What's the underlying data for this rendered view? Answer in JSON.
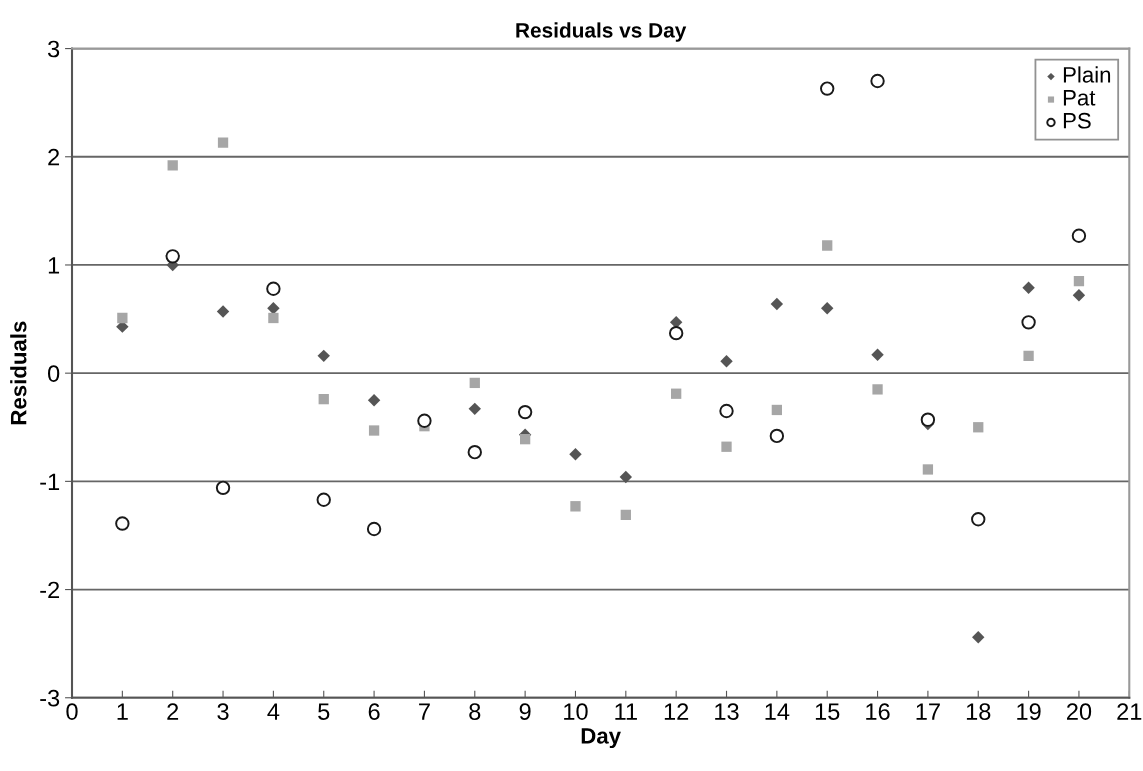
{
  "chart_data": {
    "type": "scatter",
    "title": "Residuals vs Day",
    "xlabel": "Day",
    "ylabel": "Residuals",
    "xlim": [
      0,
      21
    ],
    "xticks": [
      0,
      1,
      2,
      3,
      4,
      5,
      6,
      7,
      8,
      9,
      10,
      11,
      12,
      13,
      14,
      15,
      16,
      17,
      18,
      19,
      20,
      21
    ],
    "ylim": [
      -3,
      3
    ],
    "yticks": [
      -3,
      -2,
      -1,
      0,
      1,
      2,
      3
    ],
    "grid": "y",
    "legend": "top right",
    "x": [
      1,
      2,
      3,
      4,
      5,
      6,
      7,
      8,
      9,
      10,
      11,
      12,
      13,
      14,
      15,
      16,
      17,
      18,
      19,
      20
    ],
    "series": [
      {
        "name": "Plain",
        "color": "#555555",
        "marker": "diamond",
        "values": [
          0.43,
          1.0,
          0.57,
          0.6,
          0.16,
          -0.25,
          null,
          -0.33,
          -0.57,
          -0.75,
          -0.96,
          0.47,
          0.11,
          0.64,
          0.6,
          0.17,
          -0.47,
          -2.44,
          0.79,
          0.72
        ]
      },
      {
        "name": "Pat",
        "color": "#a6a6a6",
        "marker": "square",
        "values": [
          0.51,
          1.92,
          2.13,
          0.51,
          -0.24,
          -0.53,
          -0.49,
          -0.09,
          -0.61,
          -1.23,
          -1.31,
          -0.19,
          -0.68,
          -0.34,
          1.18,
          -0.15,
          -0.89,
          -0.5,
          0.16,
          0.85
        ]
      },
      {
        "name": "PS",
        "color": "#1a1a1a",
        "marker": "circle",
        "values": [
          -1.39,
          1.08,
          -1.06,
          0.78,
          -1.17,
          -1.44,
          -0.44,
          -0.73,
          -0.36,
          null,
          null,
          0.37,
          -0.35,
          -0.58,
          2.63,
          2.7,
          -0.43,
          -1.35,
          0.47,
          1.27
        ]
      }
    ]
  }
}
